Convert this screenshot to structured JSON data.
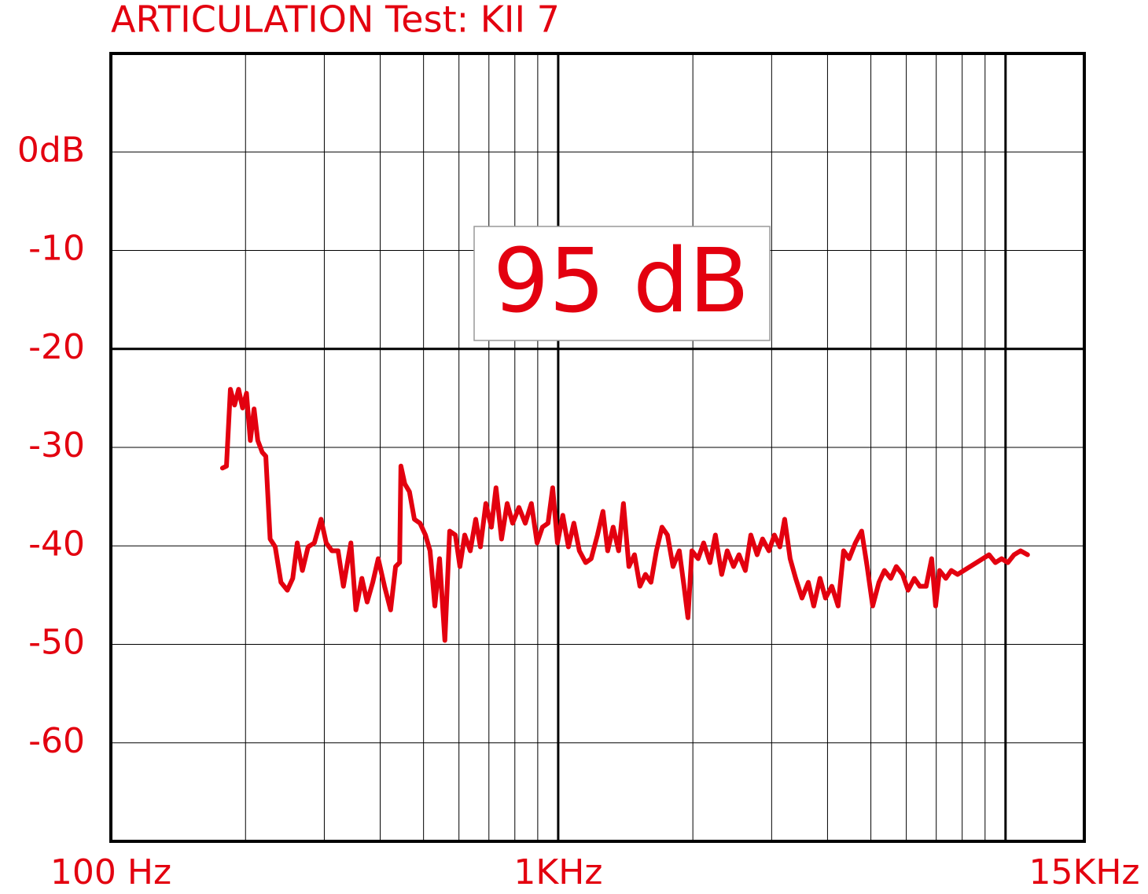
{
  "chart_data": {
    "type": "line",
    "title": "ARTICULATION Test: KII 7",
    "annotation": "95 dB",
    "color": "#e3000f",
    "log_x": true,
    "grid": true,
    "xlim": [
      100,
      15000
    ],
    "xticks": [
      {
        "value": 100,
        "label": "100 Hz"
      },
      {
        "value": 1000,
        "label": "1KHz"
      },
      {
        "value": 15000,
        "label": "15KHz"
      }
    ],
    "xgrid": [
      200,
      300,
      400,
      500,
      600,
      700,
      800,
      900,
      1000,
      2000,
      3000,
      4000,
      5000,
      6000,
      7000,
      8000,
      9000,
      10000
    ],
    "xmajor": [
      1000,
      10000
    ],
    "ylim": [
      -70,
      10
    ],
    "yticks": [
      {
        "value": 0,
        "label": "0dB"
      },
      -10,
      -20,
      -30,
      -40,
      -50,
      -60
    ],
    "ymajor": [
      -20
    ],
    "x": [
      177.6,
      181.3,
      185,
      189,
      193,
      197,
      201,
      205,
      209,
      213,
      218,
      222,
      227,
      233,
      240,
      248,
      255,
      261,
      268,
      276,
      285,
      295,
      303,
      312,
      322,
      331,
      344,
      353,
      364,
      374,
      385,
      396,
      409,
      422,
      433,
      442,
      445,
      454,
      465,
      477,
      491,
      505,
      517,
      530,
      543,
      558,
      572,
      589,
      603,
      618,
      636,
      654,
      670,
      689,
      709,
      726,
      747,
      769,
      791,
      817,
      844,
      871,
      897,
      922,
      949,
      972,
      996,
      1024,
      1054,
      1084,
      1115,
      1152,
      1185,
      1224,
      1259,
      1290,
      1327,
      1365,
      1399,
      1439,
      1481,
      1523,
      1567,
      1612,
      1658,
      1706,
      1755,
      1806,
      1865,
      1911,
      1950,
      1990,
      2055,
      2114,
      2184,
      2246,
      2320,
      2387,
      2466,
      2536,
      2620,
      2695,
      2784,
      2863,
      2958,
      3043,
      3130,
      3208,
      3300,
      3395,
      3507,
      3623,
      3726,
      3848,
      3959,
      4089,
      4224,
      4345,
      4470,
      4616,
      4768,
      4905,
      5047,
      5212,
      5362,
      5539,
      5698,
      5886,
      6055,
      6254,
      6433,
      6645,
      6837,
      6977,
      7120,
      7354,
      7564,
      7812,
      8070,
      8335,
      8610,
      8892,
      9186,
      9489,
      9800,
      10120,
      10450,
      10800,
      11200
    ],
    "values": [
      -32.1,
      -31.9,
      -24.1,
      -25.7,
      -24.1,
      -26.0,
      -24.5,
      -29.3,
      -26.1,
      -29.3,
      -30.5,
      -30.9,
      -39.3,
      -40.1,
      -43.7,
      -44.5,
      -43.3,
      -39.7,
      -42.5,
      -40.1,
      -39.7,
      -37.3,
      -39.7,
      -40.5,
      -40.5,
      -44.1,
      -39.7,
      -46.5,
      -43.3,
      -45.7,
      -43.7,
      -41.3,
      -44.1,
      -46.5,
      -42.1,
      -41.7,
      -31.9,
      -33.7,
      -34.5,
      -37.3,
      -37.7,
      -38.9,
      -40.5,
      -46.1,
      -41.3,
      -49.6,
      -38.5,
      -38.9,
      -42.1,
      -38.9,
      -40.5,
      -37.3,
      -40.1,
      -35.7,
      -38.1,
      -34.1,
      -39.3,
      -35.7,
      -37.7,
      -36.1,
      -37.7,
      -35.7,
      -39.7,
      -38.1,
      -37.7,
      -34.1,
      -39.7,
      -36.9,
      -40.1,
      -37.7,
      -40.5,
      -41.7,
      -41.3,
      -38.9,
      -36.5,
      -40.5,
      -38.1,
      -40.5,
      -35.7,
      -42.1,
      -40.9,
      -44.1,
      -42.9,
      -43.7,
      -40.5,
      -38.1,
      -38.9,
      -42.1,
      -40.5,
      -44.1,
      -47.3,
      -40.5,
      -41.3,
      -39.7,
      -41.7,
      -38.9,
      -42.9,
      -40.5,
      -42.1,
      -40.9,
      -42.5,
      -38.9,
      -40.9,
      -39.3,
      -40.5,
      -38.9,
      -40.1,
      -37.3,
      -41.3,
      -43.3,
      -45.3,
      -43.7,
      -46.1,
      -43.3,
      -45.3,
      -44.1,
      -46.1,
      -40.5,
      -41.3,
      -39.7,
      -38.5,
      -42.1,
      -46.1,
      -43.7,
      -42.5,
      -43.3,
      -42.1,
      -42.9,
      -44.5,
      -43.3,
      -44.1,
      -44.1,
      -41.3,
      -46.1,
      -42.5,
      -43.3,
      -42.5,
      -42.9,
      -42.5,
      -42.1,
      -41.7,
      -41.3,
      -40.9,
      -41.7,
      -41.3,
      -41.7,
      -40.9,
      -40.5,
      -40.9
    ]
  }
}
